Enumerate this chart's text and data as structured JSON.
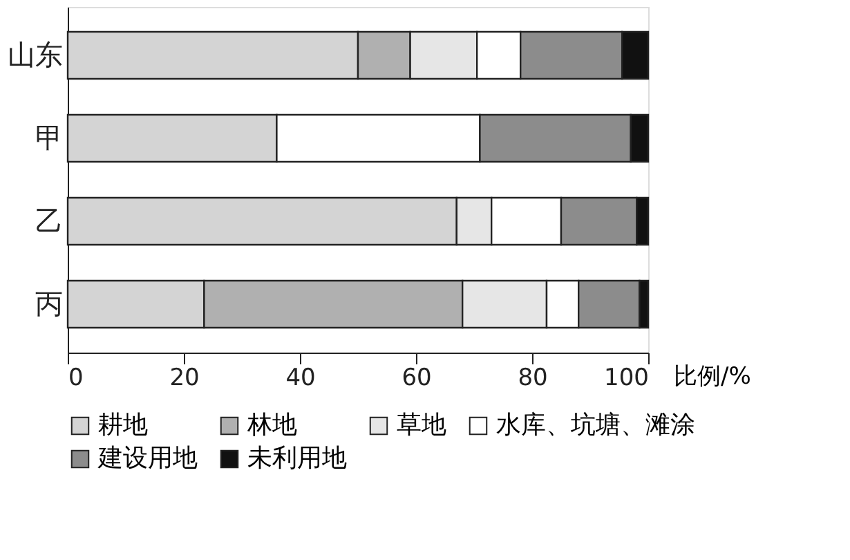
{
  "chart_data": {
    "type": "bar",
    "orientation": "horizontal",
    "stacked": true,
    "categories": [
      "山东",
      "甲",
      "乙",
      "丙"
    ],
    "xlabel": "比例/%",
    "xlim": [
      0,
      100
    ],
    "xticks": [
      0,
      20,
      40,
      60,
      80,
      100
    ],
    "grid": false,
    "legend": "bottom",
    "series": [
      {
        "name": "耕地",
        "color": "#d4d4d4",
        "values": [
          50,
          36,
          67,
          23.5
        ]
      },
      {
        "name": "林地",
        "color": "#b0b0b0",
        "values": [
          9,
          0,
          0,
          44.5
        ]
      },
      {
        "name": "草地",
        "color": "#e6e6e6",
        "values": [
          11.5,
          0,
          6,
          14.5
        ]
      },
      {
        "name": "水库、坑塘、滩涂",
        "color": "#ffffff",
        "values": [
          7.5,
          35,
          12,
          5.5
        ]
      },
      {
        "name": "建设用地",
        "color": "#8c8c8c",
        "values": [
          17.5,
          26,
          13,
          10.5
        ]
      },
      {
        "name": "未利用地",
        "color": "#111111",
        "values": [
          4.5,
          3,
          2,
          1.5
        ]
      }
    ]
  }
}
